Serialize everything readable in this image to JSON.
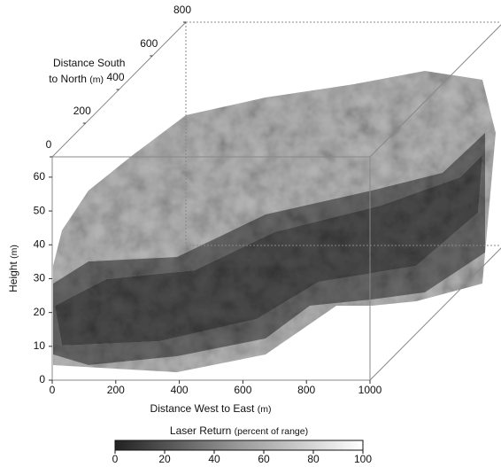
{
  "chart_data": {
    "type": "volume",
    "xlabel": {
      "name": "Distance West to East",
      "unit": "(m)"
    },
    "ylabel": {
      "name": "Height",
      "unit": "(m)"
    },
    "zlabel": {
      "line1": "Distance South",
      "name": "to North",
      "unit": "(m)"
    },
    "xlim": [
      0,
      1000
    ],
    "xticks": [
      0,
      200,
      400,
      600,
      800,
      1000
    ],
    "ylim": [
      0,
      66
    ],
    "yticks": [
      0,
      10,
      20,
      30,
      40,
      50,
      60
    ],
    "zlim": [
      0,
      800
    ],
    "zticks": [
      0,
      200,
      400,
      600,
      800
    ],
    "colorbar": {
      "name": "Laser Return",
      "unit": "(percent of range)",
      "lim": [
        0,
        100
      ],
      "ticks": [
        0,
        20,
        40,
        60,
        80,
        100
      ]
    }
  }
}
